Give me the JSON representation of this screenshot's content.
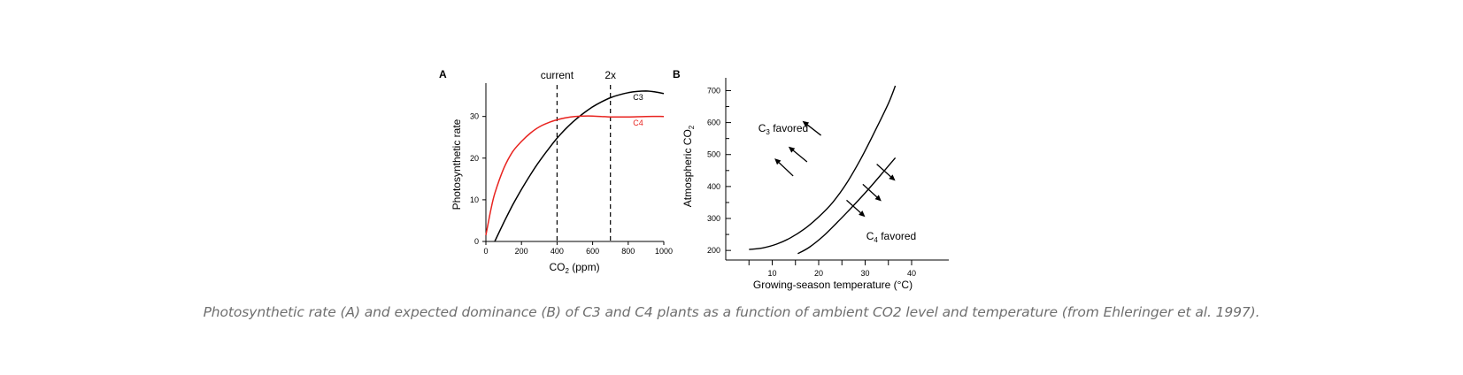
{
  "caption": "Photosynthetic rate (A) and expected dominance (B) of C3 and C4 plants as a function of ambient CO2 level and temperature (from Ehleringer et al. 1997).",
  "colors": {
    "c3": "#000000",
    "c4": "#e8231f",
    "axis": "#000000",
    "caption": "#6f6f6f"
  },
  "chart_data": [
    {
      "panel": "A",
      "type": "line",
      "xlabel_main": "CO",
      "xlabel_sub": "2",
      "xlabel_rest": " (ppm)",
      "ylabel": "Photosynthetic rate",
      "xlim": [
        0,
        1000
      ],
      "ylim": [
        0,
        38
      ],
      "xticks": [
        0,
        200,
        400,
        600,
        800,
        1000
      ],
      "yticks": [
        0,
        10,
        20,
        30
      ],
      "grid": false,
      "series": [
        {
          "name": "C3",
          "color": "#000000",
          "x": [
            50,
            100,
            150,
            200,
            250,
            300,
            350,
            400,
            450,
            500,
            550,
            600,
            650,
            700,
            750,
            800,
            850,
            900,
            950,
            1000
          ],
          "y": [
            0,
            4.5,
            8.7,
            12.5,
            16,
            19.2,
            22.1,
            24.8,
            27.1,
            29.1,
            30.8,
            32.3,
            33.5,
            34.5,
            35.2,
            35.7,
            36,
            36.1,
            35.9,
            35.5
          ]
        },
        {
          "name": "C4",
          "color": "#e8231f",
          "x": [
            0,
            25,
            50,
            100,
            150,
            200,
            250,
            300,
            350,
            400,
            450,
            500,
            550,
            600,
            650,
            700,
            800,
            900,
            1000
          ],
          "y": [
            1.5,
            7,
            11.5,
            17.5,
            21.5,
            24,
            26,
            27.5,
            28.5,
            29.2,
            29.7,
            30,
            30.1,
            30.1,
            30,
            29.9,
            29.9,
            30,
            30
          ]
        }
      ],
      "annotations": [
        {
          "label": "current",
          "x": 400
        },
        {
          "label": "2x",
          "x": 700
        }
      ]
    },
    {
      "panel": "B",
      "type": "line",
      "xlabel": "Growing-season temperature (°C)",
      "ylabel_main": "Atmospheric CO",
      "ylabel_sub": "2",
      "xlim": [
        0,
        48
      ],
      "ylim": [
        170,
        740
      ],
      "xticks": [
        10,
        20,
        30,
        40
      ],
      "xticks_unlabeled": [
        5,
        15,
        25,
        35
      ],
      "yticks": [
        200,
        300,
        400,
        500,
        600,
        700
      ],
      "grid": false,
      "series": [
        {
          "color": "#000000",
          "x": [
            5,
            8,
            11,
            14,
            17,
            20,
            23,
            26,
            29,
            32,
            35,
            36.5
          ],
          "y": [
            203,
            208,
            220,
            240,
            268,
            305,
            350,
            410,
            485,
            570,
            660,
            715
          ]
        },
        {
          "color": "#000000",
          "x": [
            15.5,
            18,
            21,
            24,
            27,
            30,
            33,
            36.5
          ],
          "y": [
            190,
            210,
            245,
            288,
            333,
            380,
            430,
            490
          ]
        }
      ],
      "annotations": [
        {
          "text_main": "C",
          "text_sub": "3",
          "text_rest": " favored",
          "x": 7.5,
          "y": 530
        },
        {
          "text_main": "C",
          "text_sub": "4",
          "text_rest": " favored",
          "x": 34.5,
          "y": 190
        }
      ],
      "arrows": [
        {
          "from": [
            14.5,
            433
          ],
          "to": [
            10.5,
            488
          ]
        },
        {
          "from": [
            17.5,
            477
          ],
          "to": [
            13.5,
            525
          ]
        },
        {
          "from": [
            20.5,
            560
          ],
          "to": [
            16.5,
            605
          ]
        },
        {
          "from": [
            26,
            357
          ],
          "to": [
            30,
            305
          ]
        },
        {
          "from": [
            29.5,
            407
          ],
          "to": [
            33.5,
            354
          ]
        },
        {
          "from": [
            32.5,
            470
          ],
          "to": [
            36.5,
            418
          ]
        }
      ]
    }
  ]
}
